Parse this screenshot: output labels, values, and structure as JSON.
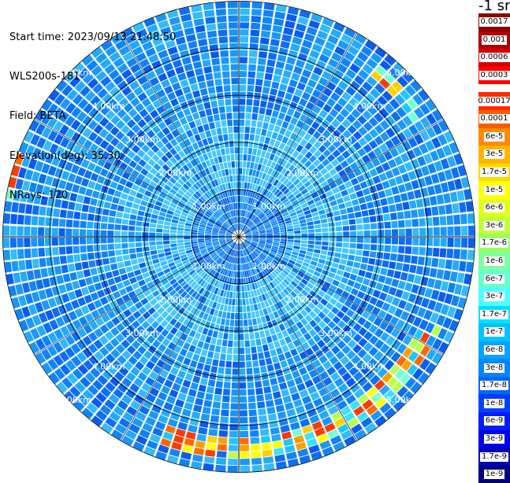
{
  "header": {
    "start_time": "Start time: 2023/09/13 21:48:50",
    "instrument": "WLS200s-181",
    "field": "Field: BETA",
    "elevation": "Elevation(deg): 35.30",
    "nrays": "NRays: 120"
  },
  "colorbar": {
    "unit": "-1 sr",
    "upper_labels": [
      "0.0017",
      "0.001",
      "0.0006",
      "0.0003"
    ],
    "upper_colors": [
      "#8b0000",
      "#b00000",
      "#d40000",
      "#ff0000"
    ],
    "lower_labels": [
      "0.00017",
      "0.0001",
      "6e-5",
      "3e-5",
      "1.7e-5",
      "1e-5",
      "6e-6",
      "3e-6",
      "1.7e-6",
      "1e-6",
      "6e-7",
      "3e-7",
      "1.7e-7",
      "1e-7",
      "6e-8",
      "3e-8",
      "1.7e-8",
      "1e-8",
      "6e-9",
      "3e-9",
      "1.7e-9",
      "1e-9"
    ],
    "lower_colors": [
      "#ff2a00",
      "#ff5a00",
      "#ff8a00",
      "#ffb400",
      "#ffd800",
      "#ffff00",
      "#e2ff1a",
      "#bfff3f",
      "#96ff66",
      "#7dffa0",
      "#66ffd0",
      "#4dffff",
      "#00e1ff",
      "#00c3ff",
      "#00a5ff",
      "#0087ff",
      "#0064ff",
      "#0040ff",
      "#001cff",
      "#0000ee",
      "#0000b8",
      "#000080"
    ]
  },
  "chart_data": {
    "type": "heatmap",
    "projection": "polar-ppi",
    "field": "BETA",
    "rays": 120,
    "range_rings_km": [
      1,
      2,
      3,
      4,
      5
    ],
    "range_ring_labels": [
      "1.00km",
      "2.00km",
      "3.00km",
      "4.00km",
      "5.00km"
    ],
    "max_range_km": 5.0,
    "spoke_angles_deg": [
      0,
      30,
      60,
      90,
      120,
      150,
      180,
      210,
      240,
      270,
      300,
      330
    ],
    "features": [
      {
        "description": "aerosol band",
        "azimuth_deg": [
          115,
          200
        ],
        "range_km": [
          4.3,
          4.75
        ]
      },
      {
        "description": "aerosol band",
        "azimuth_deg": [
          40,
          60
        ],
        "range_km": [
          4.4,
          4.7
        ]
      },
      {
        "description": "aerosol band",
        "azimuth_deg": [
          277,
          290
        ],
        "range_km": [
          4.9,
          5.0
        ]
      }
    ]
  }
}
